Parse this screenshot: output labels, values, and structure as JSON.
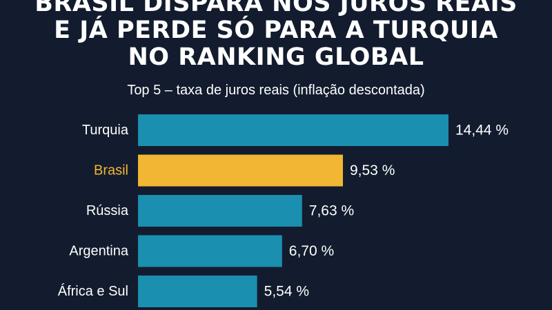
{
  "title_lines": [
    "BRASIL DISPARA NOS JUROS REAIS",
    "E JÁ PERDE SÓ PARA A TURQUIA",
    "NO RANKING GLOBAL"
  ],
  "subtitle": "Top 5 – taxa de juros reais (inflação descontada)",
  "colors": {
    "background": "#131c2e",
    "bar_default": "#1a8fb0",
    "bar_highlight": "#f0b634",
    "label_default": "#ffffff",
    "label_highlight": "#f0b634"
  },
  "chart_data": {
    "type": "bar",
    "orientation": "horizontal",
    "categories": [
      "Turquia",
      "Brasil",
      "Rússia",
      "Argentina",
      "África e Sul"
    ],
    "values": [
      14.44,
      9.53,
      7.63,
      6.7,
      5.54
    ],
    "value_labels": [
      "14,44 %",
      "9,53 %",
      "7,63 %",
      "6,70 %",
      "5,54 %"
    ],
    "highlight_category": "Brasil",
    "xlim": [
      0,
      14.44
    ],
    "grid": false,
    "legend": "none"
  }
}
